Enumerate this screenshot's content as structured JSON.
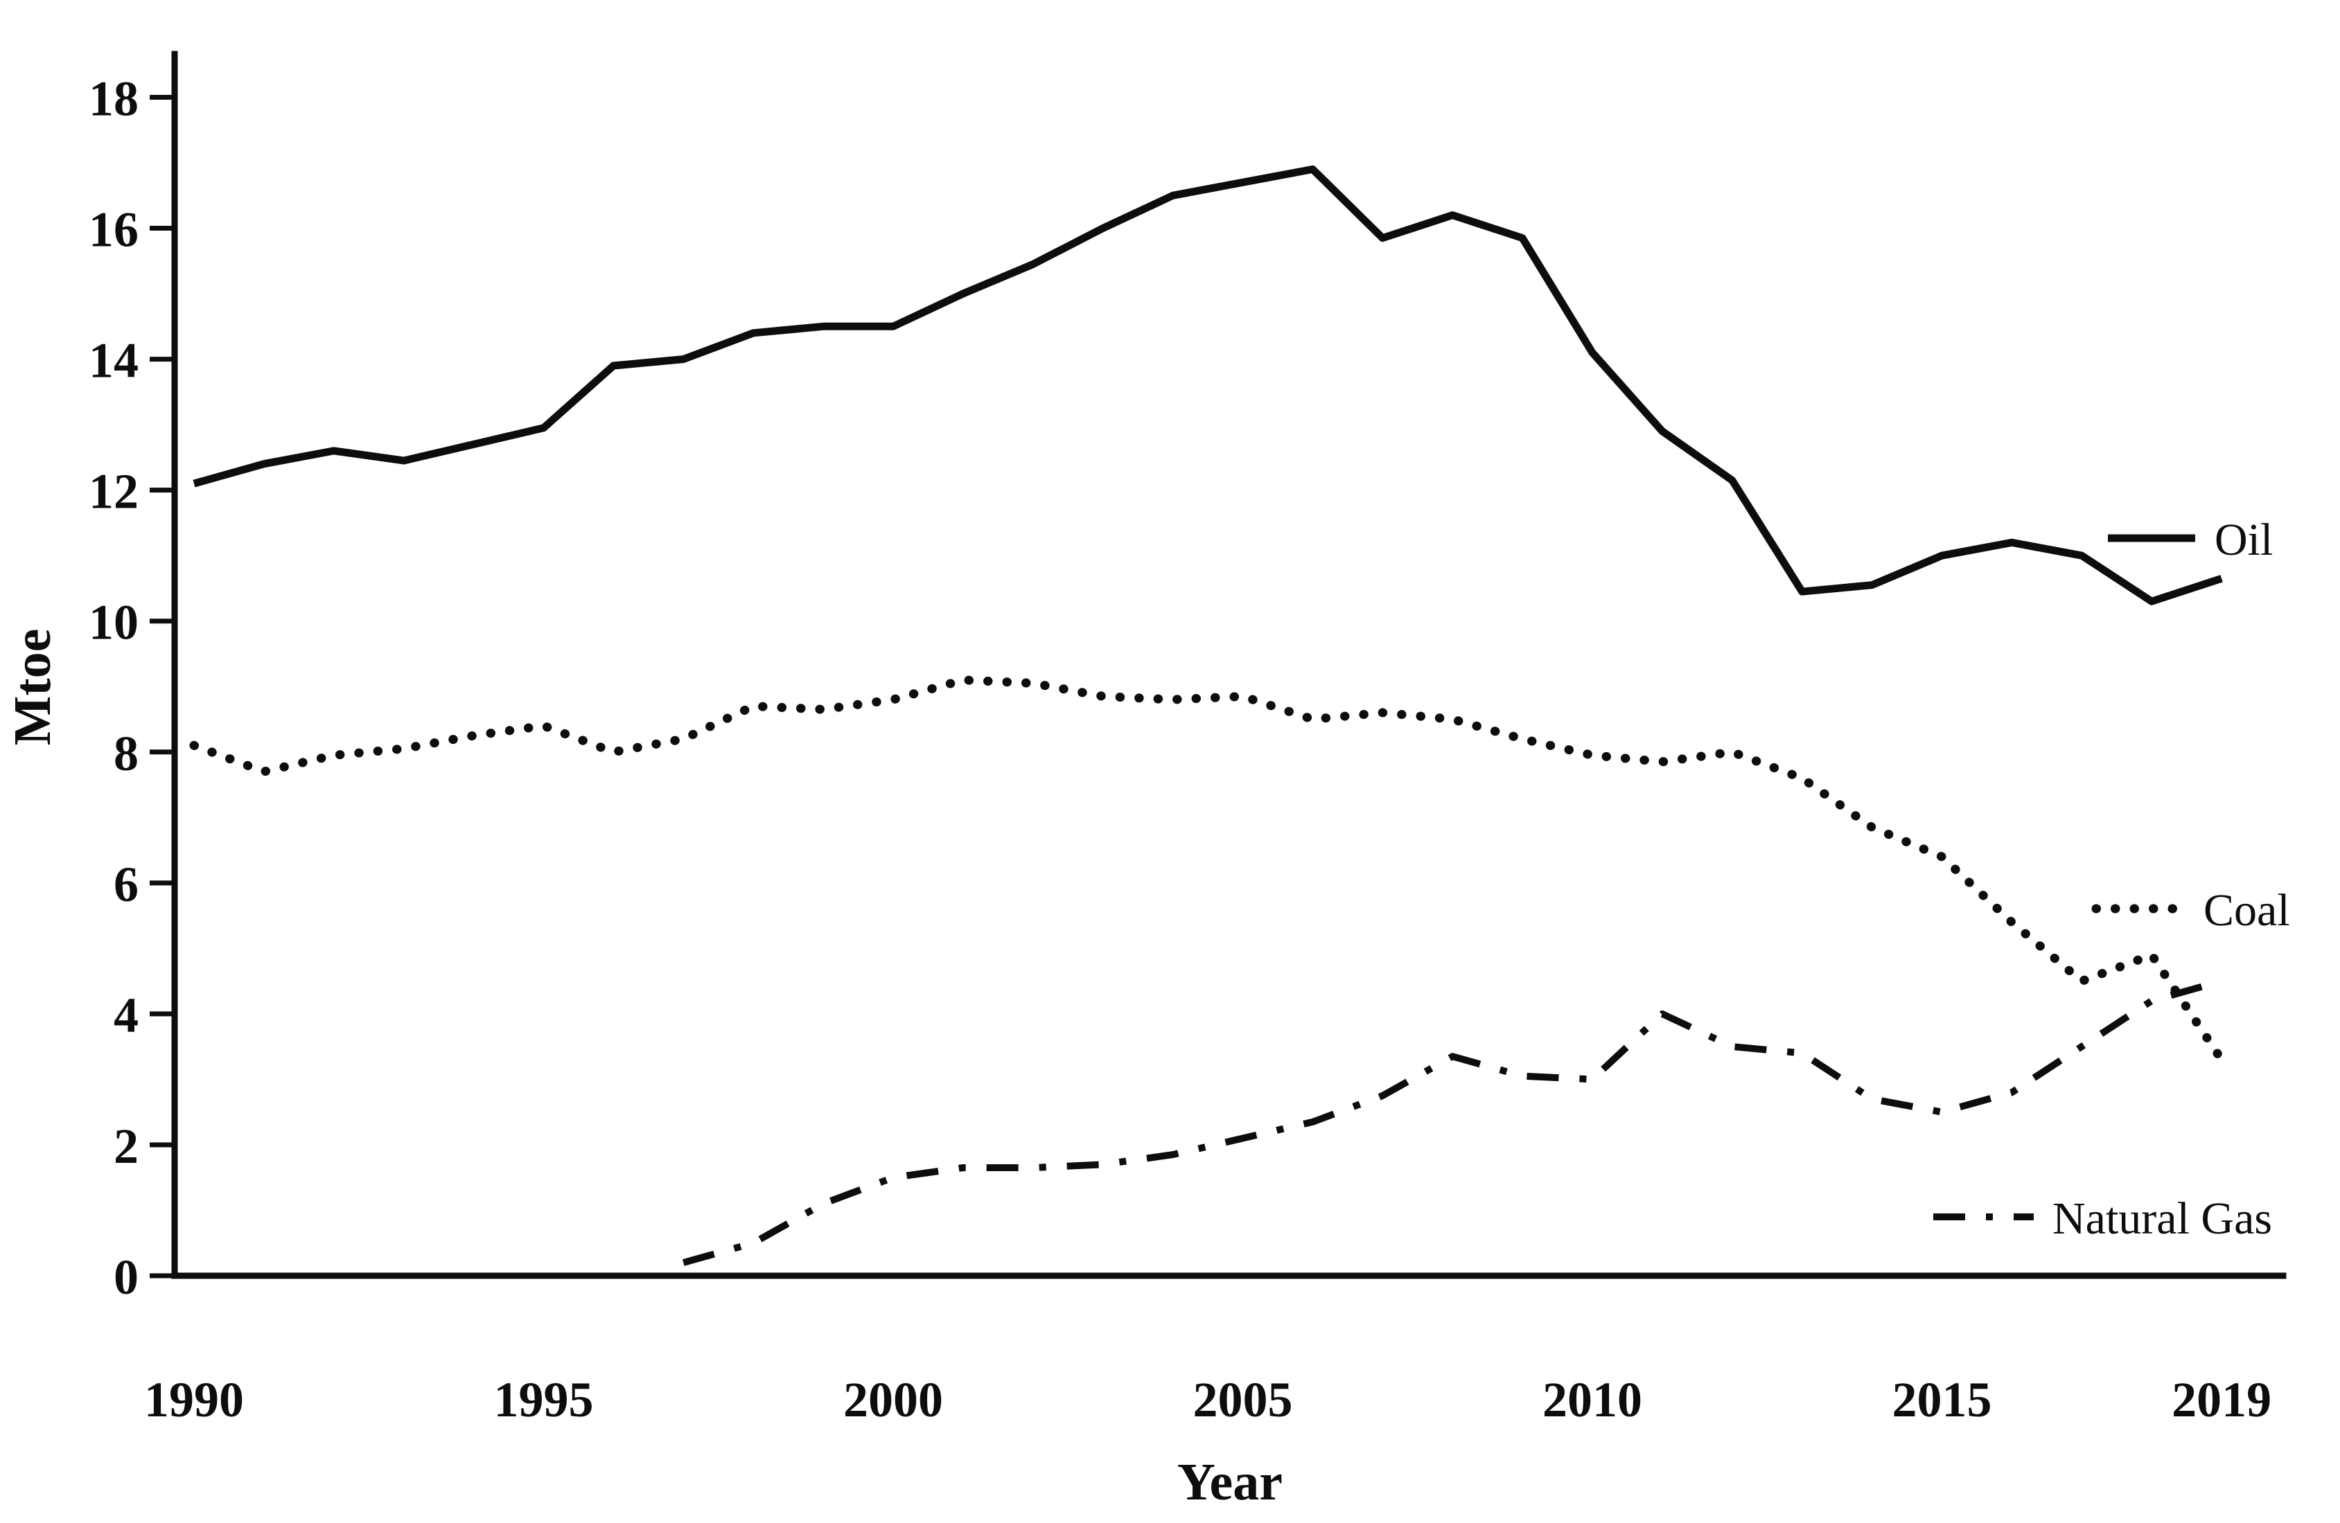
{
  "chart_data": {
    "type": "line",
    "title": "",
    "xlabel": "Year",
    "ylabel": "Mtoe",
    "x_ticks": [
      1990,
      1995,
      2000,
      2005,
      2010,
      2015,
      2019
    ],
    "y_ticks": [
      0,
      2,
      4,
      6,
      8,
      10,
      12,
      14,
      16,
      18
    ],
    "xlim": [
      1990,
      2019
    ],
    "ylim": [
      0,
      19.2
    ],
    "grid": false,
    "legend_position": "inside-right",
    "line_color": "#0d0d0d",
    "background_color": "#ffffff",
    "series": [
      {
        "name": "Oil",
        "style": "solid",
        "x": [
          1990,
          1991,
          1992,
          1993,
          1994,
          1995,
          1996,
          1997,
          1998,
          1999,
          2000,
          2001,
          2002,
          2003,
          2004,
          2005,
          2006,
          2007,
          2008,
          2009,
          2010,
          2011,
          2012,
          2013,
          2014,
          2015,
          2016,
          2017,
          2018,
          2019
        ],
        "values": [
          12.1,
          12.4,
          12.6,
          12.45,
          12.7,
          12.95,
          13.9,
          14.0,
          14.4,
          14.5,
          14.5,
          15.0,
          15.45,
          16.0,
          16.5,
          16.7,
          16.9,
          15.85,
          16.2,
          15.85,
          14.1,
          12.9,
          12.15,
          10.45,
          10.55,
          11.0,
          11.2,
          11.0,
          10.3,
          10.65
        ]
      },
      {
        "name": "Coal",
        "style": "dotted",
        "x": [
          1990,
          1991,
          1992,
          1993,
          1994,
          1995,
          1996,
          1997,
          1998,
          1999,
          2000,
          2001,
          2002,
          2003,
          2004,
          2005,
          2006,
          2007,
          2008,
          2009,
          2010,
          2011,
          2012,
          2013,
          2014,
          2015,
          2016,
          2017,
          2018,
          2019
        ],
        "values": [
          8.1,
          7.7,
          7.95,
          8.05,
          8.25,
          8.4,
          8.0,
          8.2,
          8.7,
          8.65,
          8.8,
          9.1,
          9.05,
          8.85,
          8.8,
          8.85,
          8.5,
          8.6,
          8.5,
          8.2,
          7.95,
          7.85,
          8.0,
          7.6,
          6.85,
          6.4,
          5.4,
          4.5,
          4.9,
          3.3
        ]
      },
      {
        "name": "Natural Gas",
        "style": "dashdot",
        "x": [
          1997,
          1998,
          1999,
          2000,
          2001,
          2002,
          2003,
          2004,
          2005,
          2006,
          2007,
          2008,
          2009,
          2010,
          2011,
          2012,
          2013,
          2014,
          2015,
          2016,
          2017,
          2018,
          2019
        ],
        "values": [
          0.2,
          0.5,
          1.1,
          1.5,
          1.65,
          1.65,
          1.7,
          1.85,
          2.1,
          2.35,
          2.75,
          3.35,
          3.05,
          3.0,
          4.0,
          3.5,
          3.4,
          2.7,
          2.5,
          2.8,
          3.5,
          4.2,
          4.5
        ]
      }
    ]
  }
}
